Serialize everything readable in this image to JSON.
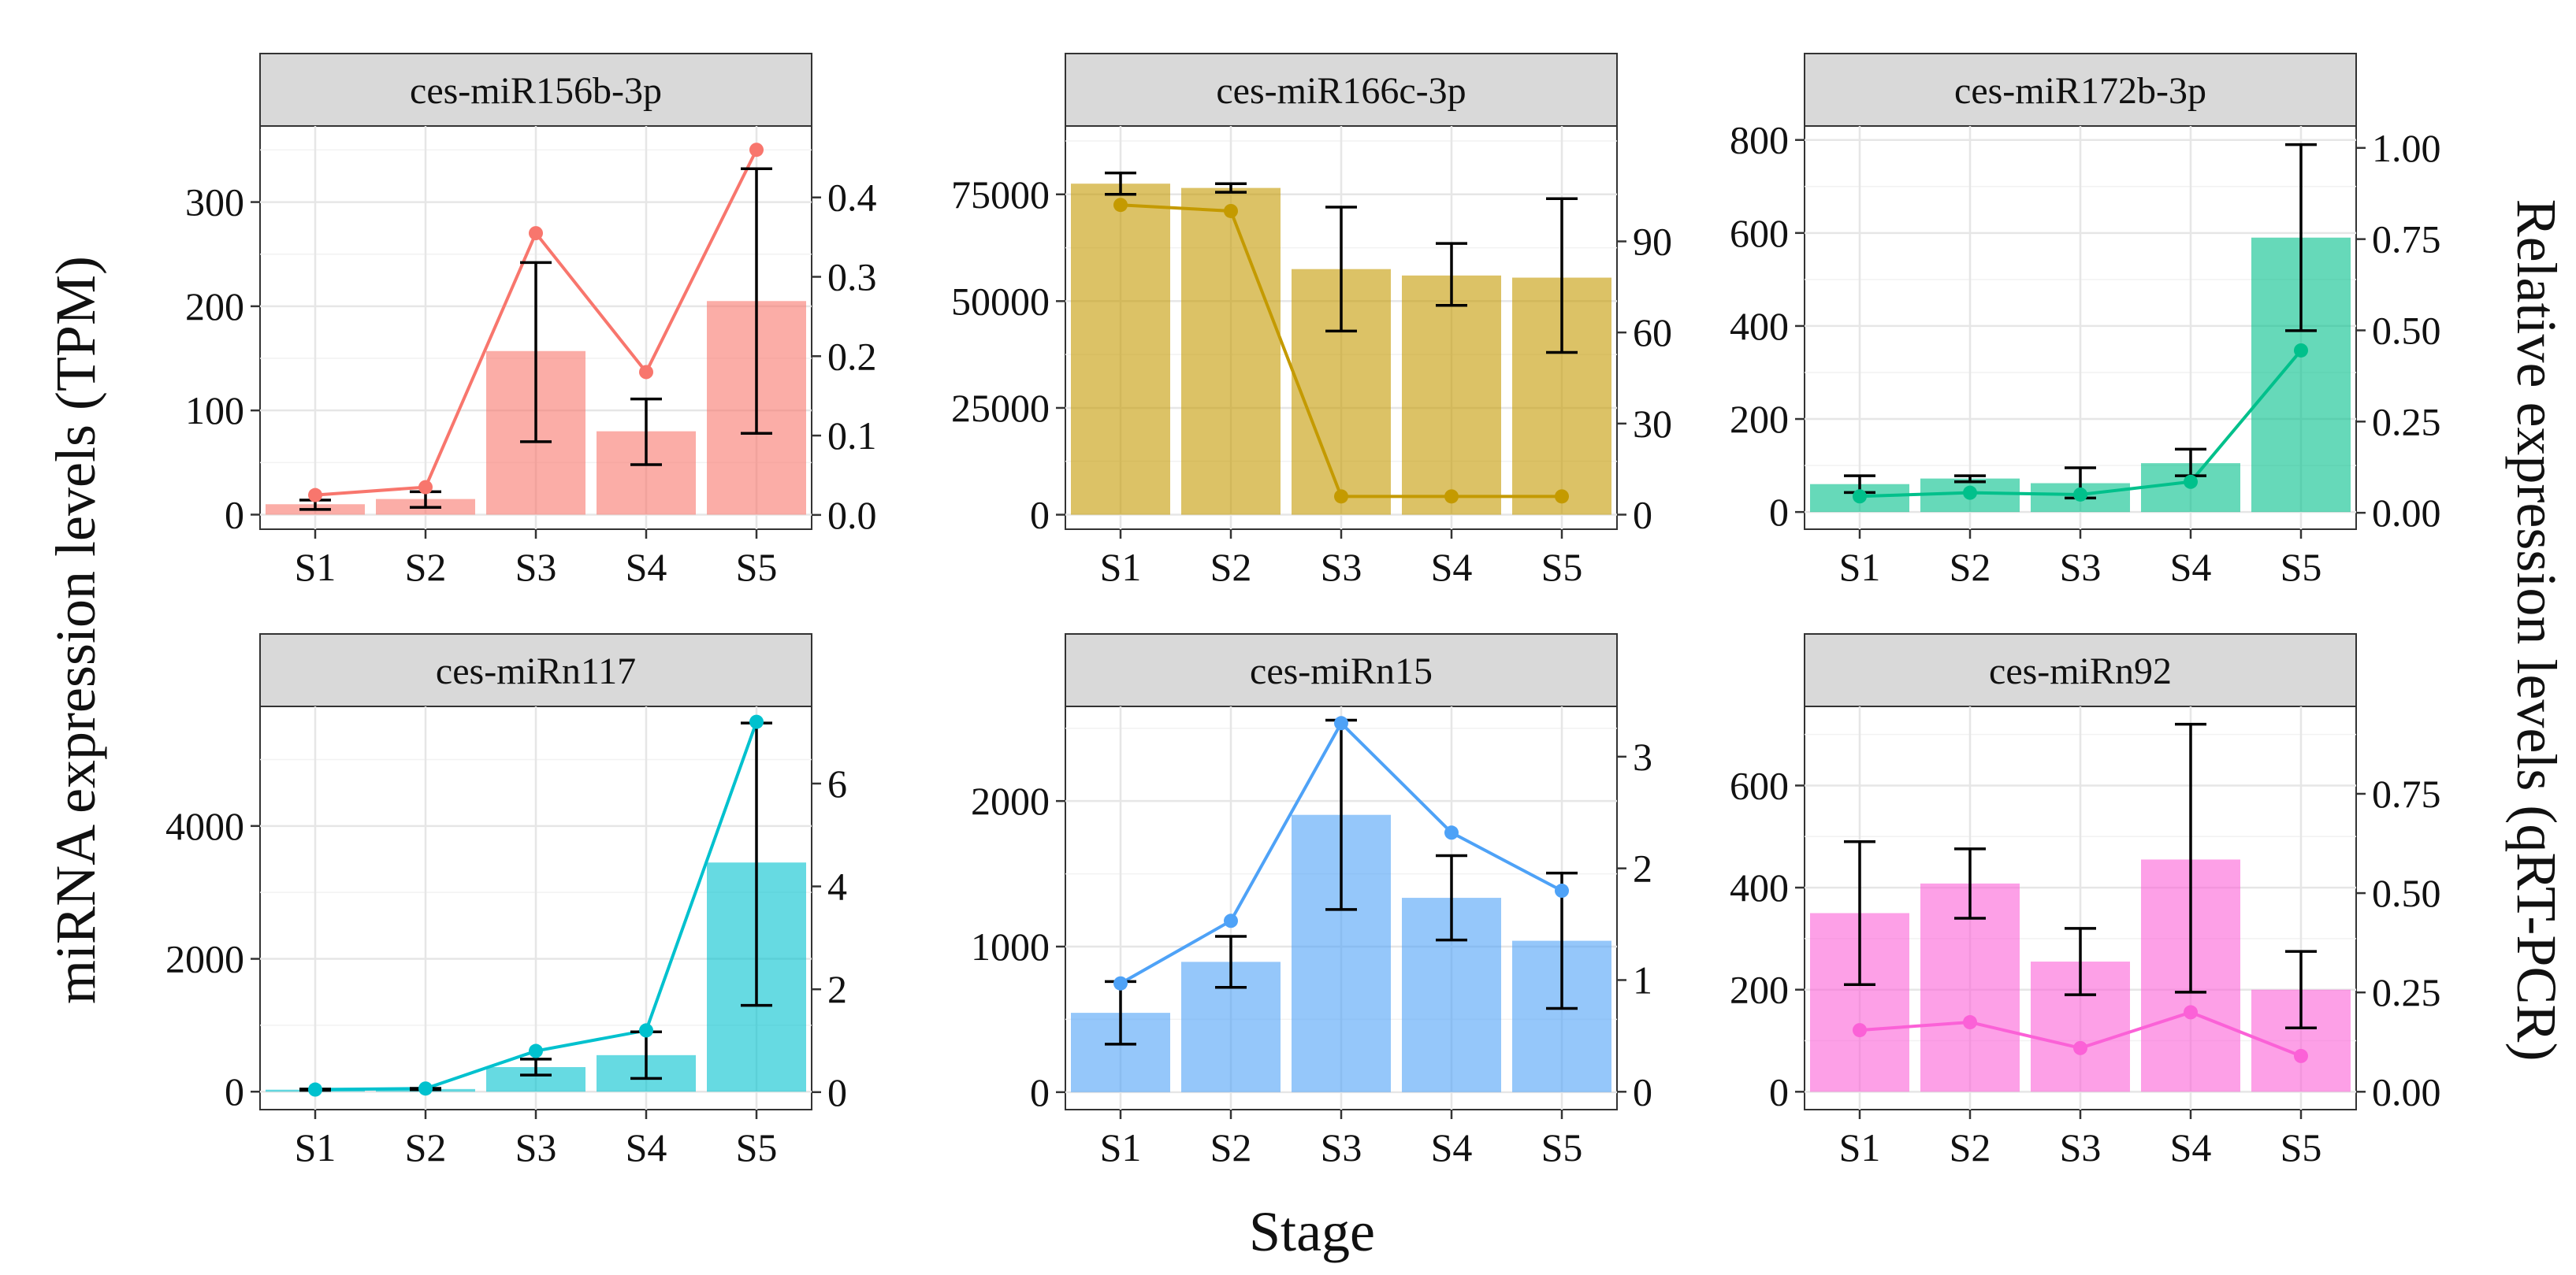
{
  "figure": {
    "ylabel_left": "miRNA expression levels (TPM)",
    "ylabel_right": "Relative expression levels (qRT-PCR)",
    "xlabel": "Stage",
    "bar_alpha": 0.6
  },
  "chart_data": [
    {
      "type": "bar",
      "title": "ces-miR156b-3p",
      "color": "#F8766D",
      "categories": [
        "S1",
        "S2",
        "S3",
        "S4",
        "S5"
      ],
      "bar_values": [
        10,
        15,
        157,
        80,
        205
      ],
      "error_low": [
        5,
        7,
        70,
        48,
        78
      ],
      "error_high": [
        14,
        22,
        242,
        111,
        332
      ],
      "line_values": [
        0.025,
        0.035,
        0.355,
        0.18,
        0.46
      ],
      "ylim": [
        -14,
        373
      ],
      "y_ticks": [
        0,
        100,
        200,
        300
      ],
      "y2lim": [
        -0.018,
        0.49
      ],
      "y2_ticks": [
        0.0,
        0.1,
        0.2,
        0.3,
        0.4
      ],
      "y2_tick_labels": [
        "0.0",
        "0.1",
        "0.2",
        "0.3",
        "0.4"
      ]
    },
    {
      "type": "bar",
      "title": "ces-miR166c-3p",
      "color": "#C49A00",
      "categories": [
        "S1",
        "S2",
        "S3",
        "S4",
        "S5"
      ],
      "bar_values": [
        77500,
        76500,
        57500,
        56000,
        55500
      ],
      "error_low": [
        75000,
        75500,
        43000,
        49000,
        38000
      ],
      "error_high": [
        80000,
        77500,
        72000,
        63500,
        74000
      ],
      "line_values": [
        102,
        100,
        6,
        6,
        6
      ],
      "ylim": [
        -3400,
        91000
      ],
      "y_ticks": [
        0,
        25000,
        50000,
        75000
      ],
      "y2lim": [
        -4.8,
        128
      ],
      "y2_ticks": [
        0,
        30,
        60,
        90
      ],
      "y2_tick_labels": [
        "0",
        "30",
        "60",
        "90"
      ]
    },
    {
      "type": "bar",
      "title": "ces-miR172b-3p",
      "color": "#00C08B",
      "categories": [
        "S1",
        "S2",
        "S3",
        "S4",
        "S5"
      ],
      "bar_values": [
        60,
        72,
        62,
        105,
        590
      ],
      "error_low": [
        42,
        65,
        30,
        78,
        390
      ],
      "error_high": [
        78,
        78,
        95,
        135,
        790
      ],
      "line_values": [
        0.045,
        0.055,
        0.05,
        0.085,
        0.445
      ],
      "ylim": [
        -37,
        830
      ],
      "y_ticks": [
        0,
        200,
        400,
        600,
        800
      ],
      "y2lim": [
        -0.045,
        1.06
      ],
      "y2_ticks": [
        0.0,
        0.25,
        0.5,
        0.75,
        1.0
      ],
      "y2_tick_labels": [
        "0.00",
        "0.25",
        "0.50",
        "0.75",
        "1.00"
      ]
    },
    {
      "type": "bar",
      "title": "ces-miRn117",
      "color": "#00C1CE",
      "categories": [
        "S1",
        "S2",
        "S3",
        "S4",
        "S5"
      ],
      "bar_values": [
        30,
        40,
        370,
        550,
        3450
      ],
      "error_low": [
        20,
        30,
        250,
        200,
        1300
      ],
      "error_high": [
        40,
        50,
        490,
        900,
        5550
      ],
      "line_values": [
        0.05,
        0.07,
        0.8,
        1.2,
        7.2
      ],
      "ylim": [
        -270,
        5800
      ],
      "y_ticks": [
        0,
        2000,
        4000
      ],
      "y2lim": [
        -0.34,
        7.5
      ],
      "y2_ticks": [
        0,
        2,
        4,
        6
      ],
      "y2_tick_labels": [
        "0",
        "2",
        "4",
        "6"
      ]
    },
    {
      "type": "bar",
      "title": "ces-miRn15",
      "color": "#4EA2F7",
      "categories": [
        "S1",
        "S2",
        "S3",
        "S4",
        "S5"
      ],
      "bar_values": [
        545,
        895,
        1905,
        1335,
        1040
      ],
      "error_low": [
        330,
        720,
        1255,
        1045,
        575
      ],
      "error_high": [
        760,
        1070,
        2555,
        1625,
        1505
      ],
      "line_values": [
        0.97,
        1.53,
        3.3,
        2.32,
        1.8
      ],
      "ylim": [
        -120,
        2650
      ],
      "y_ticks": [
        0,
        1000,
        2000
      ],
      "y2lim": [
        -0.16,
        3.45
      ],
      "y2_ticks": [
        0,
        1,
        2,
        3
      ],
      "y2_tick_labels": [
        "0",
        "1",
        "2",
        "3"
      ]
    },
    {
      "type": "bar",
      "title": "ces-miRn92",
      "color": "#FB61D7",
      "categories": [
        "S1",
        "S2",
        "S3",
        "S4",
        "S5"
      ],
      "bar_values": [
        350,
        408,
        255,
        455,
        200
      ],
      "error_low": [
        210,
        340,
        190,
        195,
        125
      ],
      "error_high": [
        490,
        476,
        320,
        720,
        275
      ],
      "line_values": [
        0.155,
        0.175,
        0.11,
        0.2,
        0.09
      ],
      "ylim": [
        -35,
        755
      ],
      "y_ticks": [
        0,
        200,
        400,
        600
      ],
      "y2lim": [
        -0.045,
        0.97
      ],
      "y2_ticks": [
        0.0,
        0.25,
        0.5,
        0.75
      ],
      "y2_tick_labels": [
        "0.00",
        "0.25",
        "0.50",
        "0.75"
      ]
    }
  ]
}
